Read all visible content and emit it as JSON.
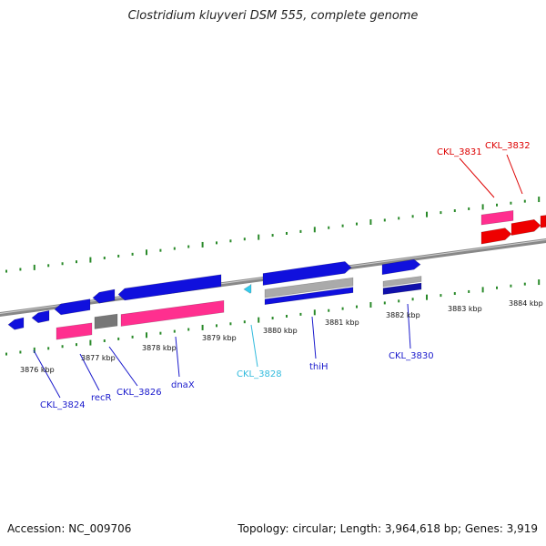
{
  "title": "Clostridium kluyveri DSM 555, complete genome",
  "footer": {
    "accession": "Accession: NC_009706",
    "summary": "Topology: circular; Length: 3,964,618 bp; Genes: 3,919"
  },
  "colors": {
    "cds": "#1010dd",
    "rna": "#ff2f8f",
    "pseudo": "#777777",
    "highlight": "#ee0000",
    "small": "#33ccee",
    "tick": "#2a8a2a",
    "backbone": "#888888"
  },
  "scale_labels": [
    "3876 kbp",
    "3877 kbp",
    "3878 kbp",
    "3879 kbp",
    "3880 kbp",
    "3881 kbp",
    "3882 kbp",
    "3883 kbp",
    "3884 kbp"
  ],
  "gene_labels": [
    {
      "text": "CKL_3824",
      "color": "#1a1acc"
    },
    {
      "text": "recR",
      "color": "#1a1acc"
    },
    {
      "text": "CKL_3826",
      "color": "#1a1acc"
    },
    {
      "text": "dnaX",
      "color": "#1a1acc"
    },
    {
      "text": "CKL_3828",
      "color": "#33bbdd"
    },
    {
      "text": "thiH",
      "color": "#1a1acc"
    },
    {
      "text": "CKL_3830",
      "color": "#1a1acc"
    },
    {
      "text": "CKL_3831",
      "color": "#dd0000"
    },
    {
      "text": "CKL_3832",
      "color": "#dd0000"
    }
  ]
}
